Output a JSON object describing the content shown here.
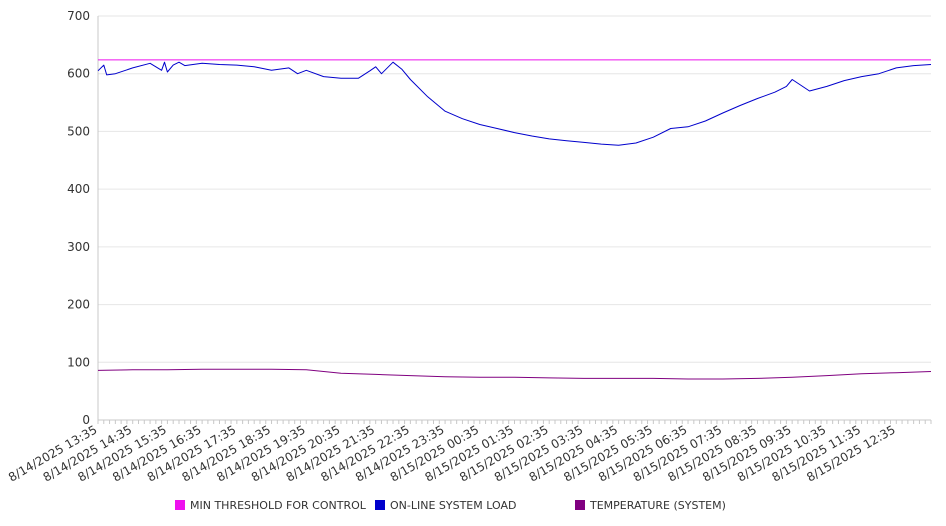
{
  "chart_data": {
    "type": "line",
    "title": "",
    "xlabel": "",
    "ylabel": "",
    "ylim": [
      0,
      700
    ],
    "y_ticks": [
      0,
      100,
      200,
      300,
      400,
      500,
      600,
      700
    ],
    "x_tick_labels": [
      "8/14/2025 13:35",
      "8/14/2025 14:35",
      "8/14/2025 15:35",
      "8/14/2025 16:35",
      "8/14/2025 17:35",
      "8/14/2025 18:35",
      "8/14/2025 19:35",
      "8/14/2025 20:35",
      "8/14/2025 21:35",
      "8/14/2025 22:35",
      "8/14/2025 23:35",
      "8/15/2025 00:35",
      "8/15/2025 01:35",
      "8/15/2025 02:35",
      "8/15/2025 03:35",
      "8/15/2025 04:35",
      "8/15/2025 05:35",
      "8/15/2025 06:35",
      "8/15/2025 07:35",
      "8/15/2025 08:35",
      "8/15/2025 09:35",
      "8/15/2025 10:35",
      "8/15/2025 11:35",
      "8/15/2025 12:35"
    ],
    "x_range": [
      "8/14/2025 13:35",
      "8/15/2025 13:35"
    ],
    "grid": true,
    "legend_position": "bottom",
    "series": [
      {
        "name": "MIN THRESHOLD FOR CONTROL",
        "color": "#ee11ee",
        "x": [
          "8/14/2025 13:35",
          "8/15/2025 13:35"
        ],
        "values": [
          624,
          624
        ]
      },
      {
        "name": "ON-LINE SYSTEM LOAD",
        "color": "#0000cc",
        "x": [
          "8/14/2025 13:35",
          "8/14/2025 13:45",
          "8/14/2025 13:50",
          "8/14/2025 14:05",
          "8/14/2025 14:35",
          "8/14/2025 15:05",
          "8/14/2025 15:25",
          "8/14/2025 15:30",
          "8/14/2025 15:35",
          "8/14/2025 15:45",
          "8/14/2025 15:55",
          "8/14/2025 16:05",
          "8/14/2025 16:35",
          "8/14/2025 17:05",
          "8/14/2025 17:35",
          "8/14/2025 18:05",
          "8/14/2025 18:35",
          "8/14/2025 19:05",
          "8/14/2025 19:20",
          "8/14/2025 19:35",
          "8/14/2025 20:05",
          "8/14/2025 20:35",
          "8/14/2025 21:05",
          "8/14/2025 21:25",
          "8/14/2025 21:35",
          "8/14/2025 21:45",
          "8/14/2025 22:05",
          "8/14/2025 22:20",
          "8/14/2025 22:35",
          "8/14/2025 23:05",
          "8/14/2025 23:35",
          "8/15/2025 00:05",
          "8/15/2025 00:35",
          "8/15/2025 01:05",
          "8/15/2025 01:35",
          "8/15/2025 02:05",
          "8/15/2025 02:35",
          "8/15/2025 03:05",
          "8/15/2025 03:35",
          "8/15/2025 04:05",
          "8/15/2025 04:35",
          "8/15/2025 05:05",
          "8/15/2025 05:35",
          "8/15/2025 06:05",
          "8/15/2025 06:35",
          "8/15/2025 07:05",
          "8/15/2025 07:35",
          "8/15/2025 08:05",
          "8/15/2025 08:35",
          "8/15/2025 09:05",
          "8/15/2025 09:25",
          "8/15/2025 09:35",
          "8/15/2025 10:05",
          "8/15/2025 10:35",
          "8/15/2025 11:05",
          "8/15/2025 11:35",
          "8/15/2025 12:05",
          "8/15/2025 12:35",
          "8/15/2025 13:05",
          "8/15/2025 13:35"
        ],
        "values": [
          605,
          615,
          598,
          600,
          610,
          618,
          606,
          620,
          603,
          615,
          620,
          614,
          618,
          616,
          615,
          612,
          606,
          610,
          600,
          606,
          595,
          592,
          592,
          605,
          612,
          600,
          620,
          608,
          590,
          560,
          535,
          522,
          512,
          505,
          498,
          492,
          487,
          484,
          481,
          478,
          476,
          480,
          490,
          505,
          508,
          518,
          532,
          545,
          557,
          568,
          578,
          590,
          570,
          578,
          588,
          595,
          600,
          610,
          614,
          616
        ]
      },
      {
        "name": "TEMPERATURE (SYSTEM)",
        "color": "#800080",
        "x": [
          "8/14/2025 13:35",
          "8/14/2025 14:35",
          "8/14/2025 15:35",
          "8/14/2025 16:35",
          "8/14/2025 17:35",
          "8/14/2025 18:35",
          "8/14/2025 19:35",
          "8/14/2025 20:35",
          "8/14/2025 21:35",
          "8/14/2025 22:35",
          "8/14/2025 23:35",
          "8/15/2025 00:35",
          "8/15/2025 01:35",
          "8/15/2025 02:35",
          "8/15/2025 03:35",
          "8/15/2025 04:35",
          "8/15/2025 05:35",
          "8/15/2025 06:35",
          "8/15/2025 07:35",
          "8/15/2025 08:35",
          "8/15/2025 09:35",
          "8/15/2025 10:35",
          "8/15/2025 11:35",
          "8/15/2025 12:35",
          "8/15/2025 13:35"
        ],
        "values": [
          86,
          87,
          87,
          88,
          88,
          88,
          87,
          81,
          79,
          77,
          75,
          74,
          74,
          73,
          72,
          72,
          72,
          71,
          71,
          72,
          74,
          77,
          80,
          82,
          84
        ]
      }
    ]
  }
}
